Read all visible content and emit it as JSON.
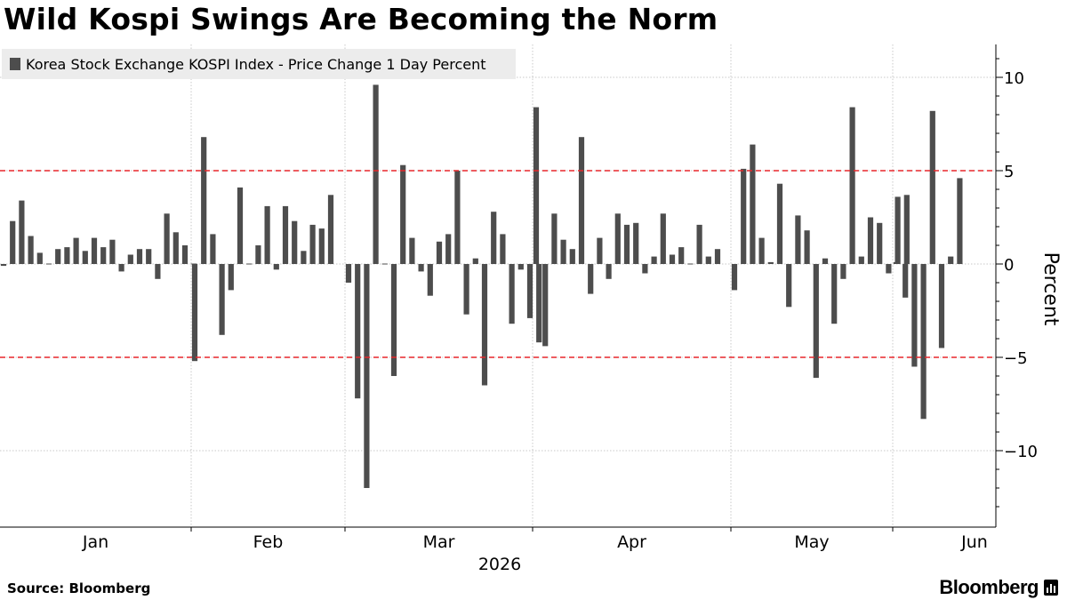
{
  "title": "Wild Kospi Swings Are Becoming the Norm",
  "source": "Source: Bloomberg",
  "brand": "Bloomberg",
  "colors": {
    "bar": "#4d4d4d",
    "threshold": "#e8262b",
    "grid": "#c8c8c8",
    "legend_bg": "#ececec"
  },
  "chart_data": {
    "type": "bar",
    "legend": "Korea Stock Exchange KOSPI Index - Price Change 1 Day Percent",
    "ylabel": "Percent",
    "xlabel": "2026",
    "ylim": [
      -14,
      12
    ],
    "yticks": [
      10,
      5,
      0,
      -5,
      -10
    ],
    "xtick_labels": [
      "Jan",
      "Feb",
      "Mar",
      "Apr",
      "May",
      "Jun"
    ],
    "reference_lines": [
      5,
      -5
    ],
    "grid": true,
    "months": [
      {
        "label": "Jan",
        "values": [
          -0.1,
          2.3,
          3.4,
          1.5,
          0.6,
          0.0,
          0.8,
          0.9,
          1.4,
          0.7,
          1.4,
          0.9,
          1.3,
          -0.4,
          0.5,
          0.8,
          0.8,
          -0.8,
          2.7,
          1.7,
          1.0,
          0.0
        ]
      },
      {
        "label": "Feb",
        "values": [
          -5.2,
          6.8,
          1.6,
          -3.8,
          -1.4,
          4.1,
          0.0,
          1.0,
          3.1,
          -0.3,
          3.1,
          2.3,
          0.7,
          2.1,
          1.9,
          3.7
        ]
      },
      {
        "label": "Mar",
        "values": [
          -1.0,
          -7.2,
          -12.0,
          9.6,
          0.0,
          -6.0,
          5.3,
          1.4,
          -0.4,
          -1.7,
          1.2,
          1.6,
          5.0,
          -2.7,
          0.3,
          -6.5,
          2.8,
          1.6,
          -3.2,
          -0.3,
          -2.9,
          -4.2
        ]
      },
      {
        "label": "Apr",
        "values": [
          8.4,
          -4.4,
          2.7,
          1.3,
          0.8,
          6.8,
          -1.6,
          1.4,
          -0.8,
          2.7,
          2.1,
          2.2,
          -0.5,
          0.4,
          2.7,
          0.5,
          0.9,
          0.0,
          2.1,
          0.4,
          0.8
        ]
      },
      {
        "label": "May",
        "values": [
          -1.4,
          5.1,
          6.4,
          1.4,
          0.1,
          4.3,
          -2.3,
          2.6,
          1.8,
          -6.1,
          0.3,
          -3.2,
          -0.8,
          8.4,
          0.4,
          2.5,
          2.2,
          -0.5,
          3.6,
          3.7
        ]
      },
      {
        "label": "Jun",
        "values": [
          0.1,
          -1.8,
          -5.5,
          -8.3,
          8.2,
          -4.5,
          0.4,
          4.6
        ]
      }
    ]
  }
}
